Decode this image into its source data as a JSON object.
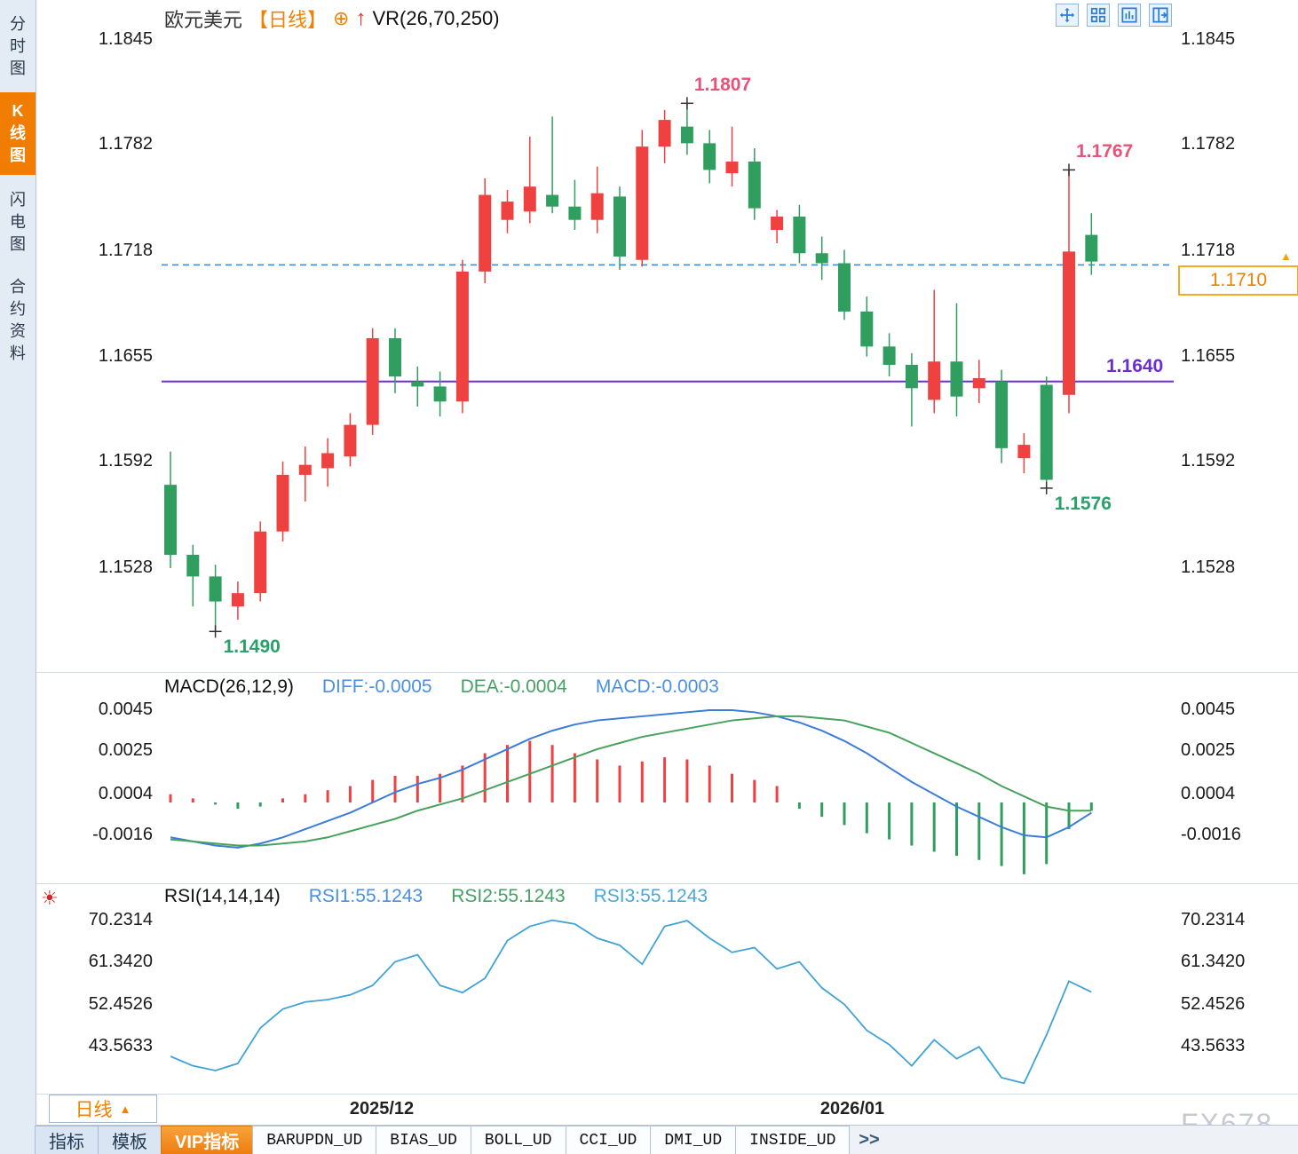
{
  "sidebar": {
    "tabs": [
      {
        "label": "分时图",
        "name": "timeshare",
        "active": false
      },
      {
        "label": "K线图",
        "name": "kline",
        "active": true
      },
      {
        "label": "闪电图",
        "name": "lightning",
        "active": false
      },
      {
        "label": "合约资料",
        "name": "contract-info",
        "active": false
      }
    ]
  },
  "header": {
    "symbol": "欧元美元",
    "period": "【日线】",
    "overlay_indicator": "VR(26,70,250)",
    "tools": [
      "move-icon",
      "grid-layout-icon",
      "kline-layout-icon",
      "split-layout-icon"
    ]
  },
  "price_panel": {
    "y_ticks": [
      "1.1845",
      "1.1782",
      "1.1718",
      "1.1655",
      "1.1592",
      "1.1528"
    ],
    "current_label": "1.1710"
  },
  "macd_panel": {
    "title": "MACD(26,12,9)",
    "diff_label": "DIFF:-0.0005",
    "dea_label": "DEA:-0.0004",
    "macd_label": "MACD:-0.0003",
    "y_ticks": [
      "0.0045",
      "0.0025",
      "0.0004",
      "-0.0016"
    ]
  },
  "rsi_panel": {
    "title": "RSI(14,14,14)",
    "rsi1_label": "RSI1:55.1243",
    "rsi2_label": "RSI2:55.1243",
    "rsi3_label": "RSI3:55.1243",
    "y_ticks": [
      "70.2314",
      "61.3420",
      "52.4526",
      "43.5633"
    ]
  },
  "footer": {
    "period_label": "日线",
    "x_labels": [
      "2025/12",
      "2026/01"
    ],
    "watermark": "FX678",
    "tabs": [
      {
        "label": "指标",
        "style": "plain"
      },
      {
        "label": "模板",
        "style": "plain"
      },
      {
        "label": "VIP指标",
        "style": "vip"
      },
      {
        "label": "BARUPDN_UD",
        "style": "ind"
      },
      {
        "label": "BIAS_UD",
        "style": "ind"
      },
      {
        "label": "BOLL_UD",
        "style": "ind"
      },
      {
        "label": "CCI_UD",
        "style": "ind"
      },
      {
        "label": "DMI_UD",
        "style": "ind"
      },
      {
        "label": "INSIDE_UD",
        "style": "ind"
      },
      {
        "label": ">>",
        "style": "more"
      }
    ]
  },
  "colors": {
    "up": "#ee4140",
    "down": "#2f9e5e",
    "diff_line": "#3b7dd8",
    "dea_line": "#48a15c",
    "rsi_line": "#3fa3d7",
    "dashed_level": "#3a8fe0",
    "support_line": "#6a2fd0",
    "accent_orange": "#f08200",
    "annotation_pink": "#e8537a",
    "annotation_green": "#2aa06a"
  },
  "chart_data": [
    {
      "type": "candlestick",
      "title": "欧元美元 日线 (EUR/USD daily)",
      "x_labels": [
        "2025/12",
        "2026/01"
      ],
      "y_range": [
        1.149,
        1.1845
      ],
      "ohlc": [
        [
          1.1578,
          1.1598,
          1.1528,
          1.1536
        ],
        [
          1.1536,
          1.1542,
          1.1505,
          1.1523
        ],
        [
          1.1523,
          1.153,
          1.149,
          1.1508
        ],
        [
          1.1505,
          1.152,
          1.1497,
          1.1513
        ],
        [
          1.1513,
          1.1556,
          1.1508,
          1.155
        ],
        [
          1.155,
          1.1592,
          1.1544,
          1.1584
        ],
        [
          1.1584,
          1.1601,
          1.1568,
          1.159
        ],
        [
          1.1588,
          1.1606,
          1.1577,
          1.1597
        ],
        [
          1.1595,
          1.1621,
          1.1589,
          1.1614
        ],
        [
          1.1614,
          1.1672,
          1.1608,
          1.1666
        ],
        [
          1.1666,
          1.1672,
          1.1633,
          1.1643
        ],
        [
          1.164,
          1.1649,
          1.1625,
          1.1637
        ],
        [
          1.1637,
          1.1646,
          1.1619,
          1.1628
        ],
        [
          1.1628,
          1.1713,
          1.1621,
          1.1706
        ],
        [
          1.1706,
          1.1762,
          1.1699,
          1.1752
        ],
        [
          1.1737,
          1.1755,
          1.1729,
          1.1748
        ],
        [
          1.1742,
          1.1787,
          1.1735,
          1.1757
        ],
        [
          1.1752,
          1.1799,
          1.1741,
          1.1745
        ],
        [
          1.1745,
          1.1761,
          1.1731,
          1.1737
        ],
        [
          1.1737,
          1.1769,
          1.1729,
          1.1753
        ],
        [
          1.1751,
          1.1757,
          1.1707,
          1.1715
        ],
        [
          1.1713,
          1.1791,
          1.1709,
          1.1781
        ],
        [
          1.1781,
          1.1803,
          1.1771,
          1.1797
        ],
        [
          1.1793,
          1.1807,
          1.1776,
          1.1783
        ],
        [
          1.1783,
          1.1791,
          1.1759,
          1.1767
        ],
        [
          1.1765,
          1.1793,
          1.1757,
          1.1772
        ],
        [
          1.1772,
          1.178,
          1.1737,
          1.1744
        ],
        [
          1.1731,
          1.1743,
          1.1723,
          1.1739
        ],
        [
          1.1739,
          1.1746,
          1.1711,
          1.1717
        ],
        [
          1.1717,
          1.1727,
          1.1701,
          1.1711
        ],
        [
          1.1711,
          1.1719,
          1.1677,
          1.1682
        ],
        [
          1.1682,
          1.1691,
          1.1655,
          1.1661
        ],
        [
          1.1661,
          1.1669,
          1.1643,
          1.165
        ],
        [
          1.165,
          1.1657,
          1.1613,
          1.1636
        ],
        [
          1.1629,
          1.1695,
          1.1621,
          1.1652
        ],
        [
          1.1652,
          1.1687,
          1.1619,
          1.1631
        ],
        [
          1.1636,
          1.1653,
          1.1627,
          1.1642
        ],
        [
          1.164,
          1.1647,
          1.1591,
          1.16
        ],
        [
          1.1594,
          1.1609,
          1.1585,
          1.1602
        ],
        [
          1.1638,
          1.1643,
          1.1576,
          1.1581
        ],
        [
          1.1632,
          1.1767,
          1.1621,
          1.1718
        ],
        [
          1.1728,
          1.1741,
          1.1704,
          1.1712
        ]
      ],
      "levels": {
        "current_price": 1.171,
        "current_label": "1.1710",
        "support": 1.164,
        "support_label": "1.1640"
      },
      "annotations": [
        {
          "label": "1.1807",
          "candle": 23,
          "price": 1.1807,
          "kind": "high"
        },
        {
          "label": "1.1767",
          "candle": 40,
          "price": 1.1767,
          "kind": "high"
        },
        {
          "label": "1.1576",
          "candle": 39,
          "price": 1.1576,
          "kind": "low"
        },
        {
          "label": "1.1490",
          "candle": 2,
          "price": 1.149,
          "kind": "low"
        }
      ]
    },
    {
      "type": "macd",
      "title": "MACD(26,12,9)",
      "current": {
        "diff": -0.0005,
        "dea": -0.0004,
        "macd": -0.0003
      },
      "hist": [
        0.0004,
        0.0002,
        -0.0001,
        -0.0003,
        -0.0002,
        0.0002,
        0.0004,
        0.0006,
        0.0008,
        0.0011,
        0.0013,
        0.0013,
        0.0014,
        0.0018,
        0.0024,
        0.0028,
        0.003,
        0.0028,
        0.0024,
        0.0021,
        0.0018,
        0.002,
        0.0022,
        0.0021,
        0.0018,
        0.0014,
        0.0011,
        0.0008,
        -0.0003,
        -0.0007,
        -0.0011,
        -0.0015,
        -0.0018,
        -0.0021,
        -0.0024,
        -0.0026,
        -0.0028,
        -0.0031,
        -0.0035,
        -0.003,
        -0.0013,
        -0.0004
      ],
      "diff": [
        -0.0017,
        -0.0019,
        -0.0021,
        -0.0022,
        -0.002,
        -0.0017,
        -0.0013,
        -0.0009,
        -0.0005,
        0.0,
        0.0005,
        0.0009,
        0.0012,
        0.0016,
        0.0021,
        0.0026,
        0.0031,
        0.0035,
        0.0038,
        0.004,
        0.0041,
        0.0042,
        0.0043,
        0.0044,
        0.0045,
        0.0045,
        0.0044,
        0.0042,
        0.0039,
        0.0035,
        0.003,
        0.0024,
        0.0017,
        0.001,
        0.0004,
        -0.0002,
        -0.0007,
        -0.0012,
        -0.0016,
        -0.0017,
        -0.0012,
        -0.0005
      ],
      "dea": [
        -0.0018,
        -0.0019,
        -0.002,
        -0.0021,
        -0.0021,
        -0.002,
        -0.0019,
        -0.0017,
        -0.0014,
        -0.0011,
        -0.0008,
        -0.0004,
        -0.0001,
        0.0002,
        0.0006,
        0.001,
        0.0014,
        0.0018,
        0.0022,
        0.0026,
        0.0029,
        0.0032,
        0.0034,
        0.0036,
        0.0038,
        0.004,
        0.0041,
        0.0042,
        0.0042,
        0.0041,
        0.004,
        0.0037,
        0.0034,
        0.0029,
        0.0024,
        0.0019,
        0.0014,
        0.0008,
        0.0003,
        -0.0002,
        -0.0004,
        -0.0004
      ]
    },
    {
      "type": "line",
      "title": "RSI(14,14,14)",
      "current": {
        "rsi1": 55.1243,
        "rsi2": 55.1243,
        "rsi3": 55.1243
      },
      "values": [
        41.5,
        39.5,
        38.5,
        40.0,
        47.5,
        51.5,
        53.0,
        53.5,
        54.5,
        56.5,
        61.5,
        63.0,
        56.5,
        55.0,
        58.0,
        66.0,
        69.0,
        70.3,
        69.5,
        66.5,
        65.0,
        61.0,
        69.0,
        70.2,
        66.5,
        63.5,
        64.5,
        60.0,
        61.5,
        56.0,
        52.5,
        47.0,
        44.0,
        39.5,
        45.0,
        41.0,
        43.5,
        37.0,
        35.8,
        46.0,
        57.4,
        55.1
      ]
    }
  ]
}
